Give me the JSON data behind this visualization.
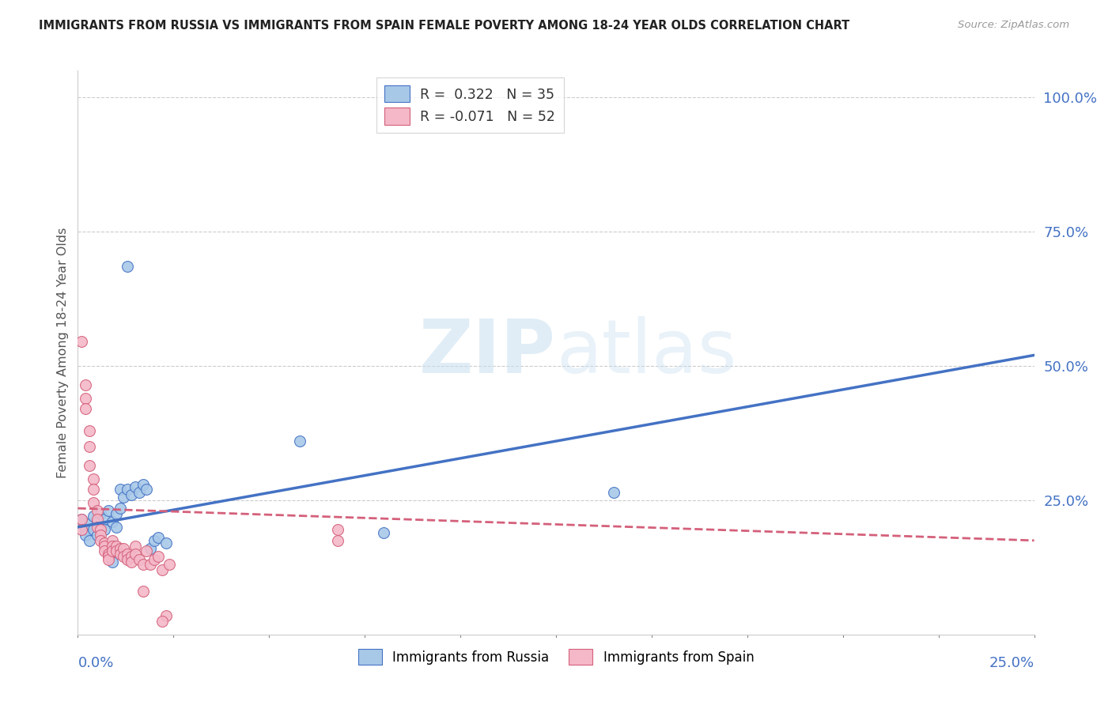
{
  "title": "IMMIGRANTS FROM RUSSIA VS IMMIGRANTS FROM SPAIN FEMALE POVERTY AMONG 18-24 YEAR OLDS CORRELATION CHART",
  "source": "Source: ZipAtlas.com",
  "ylabel": "Female Poverty Among 18-24 Year Olds",
  "yaxis_labels": [
    "100.0%",
    "75.0%",
    "50.0%",
    "25.0%"
  ],
  "yaxis_values": [
    1.0,
    0.75,
    0.5,
    0.25
  ],
  "russia_R": 0.322,
  "russia_N": 35,
  "spain_R": -0.071,
  "spain_N": 52,
  "russia_color": "#a8c8e8",
  "russia_line_color": "#4472c4",
  "spain_color": "#f4b8c8",
  "spain_line_color": "#d4607a",
  "watermark_zip": "ZIP",
  "watermark_atlas": "atlas",
  "xlim": [
    0.0,
    0.25
  ],
  "ylim": [
    0.0,
    1.05
  ],
  "russia_trendline": [
    0.2,
    0.52
  ],
  "spain_trendline": [
    0.235,
    0.175
  ],
  "russia_scatter": [
    [
      0.001,
      0.215
    ],
    [
      0.002,
      0.195
    ],
    [
      0.002,
      0.185
    ],
    [
      0.003,
      0.205
    ],
    [
      0.003,
      0.175
    ],
    [
      0.004,
      0.22
    ],
    [
      0.004,
      0.195
    ],
    [
      0.005,
      0.21
    ],
    [
      0.005,
      0.185
    ],
    [
      0.006,
      0.225
    ],
    [
      0.006,
      0.2
    ],
    [
      0.007,
      0.215
    ],
    [
      0.007,
      0.195
    ],
    [
      0.008,
      0.23
    ],
    [
      0.009,
      0.21
    ],
    [
      0.01,
      0.225
    ],
    [
      0.01,
      0.2
    ],
    [
      0.011,
      0.27
    ],
    [
      0.011,
      0.235
    ],
    [
      0.012,
      0.255
    ],
    [
      0.013,
      0.27
    ],
    [
      0.013,
      0.685
    ],
    [
      0.014,
      0.26
    ],
    [
      0.015,
      0.275
    ],
    [
      0.016,
      0.265
    ],
    [
      0.017,
      0.28
    ],
    [
      0.018,
      0.27
    ],
    [
      0.019,
      0.16
    ],
    [
      0.02,
      0.175
    ],
    [
      0.021,
      0.18
    ],
    [
      0.023,
      0.17
    ],
    [
      0.058,
      0.36
    ],
    [
      0.08,
      0.19
    ],
    [
      0.14,
      0.265
    ],
    [
      0.009,
      0.135
    ]
  ],
  "spain_scatter": [
    [
      0.001,
      0.215
    ],
    [
      0.001,
      0.195
    ],
    [
      0.002,
      0.44
    ],
    [
      0.002,
      0.42
    ],
    [
      0.003,
      0.38
    ],
    [
      0.003,
      0.35
    ],
    [
      0.003,
      0.315
    ],
    [
      0.004,
      0.29
    ],
    [
      0.004,
      0.27
    ],
    [
      0.004,
      0.245
    ],
    [
      0.005,
      0.23
    ],
    [
      0.005,
      0.215
    ],
    [
      0.005,
      0.2
    ],
    [
      0.006,
      0.195
    ],
    [
      0.006,
      0.185
    ],
    [
      0.006,
      0.175
    ],
    [
      0.007,
      0.17
    ],
    [
      0.007,
      0.165
    ],
    [
      0.007,
      0.155
    ],
    [
      0.008,
      0.15
    ],
    [
      0.008,
      0.145
    ],
    [
      0.008,
      0.14
    ],
    [
      0.009,
      0.175
    ],
    [
      0.009,
      0.165
    ],
    [
      0.009,
      0.155
    ],
    [
      0.01,
      0.165
    ],
    [
      0.01,
      0.155
    ],
    [
      0.011,
      0.16
    ],
    [
      0.011,
      0.15
    ],
    [
      0.012,
      0.16
    ],
    [
      0.012,
      0.145
    ],
    [
      0.013,
      0.15
    ],
    [
      0.013,
      0.14
    ],
    [
      0.014,
      0.145
    ],
    [
      0.014,
      0.135
    ],
    [
      0.015,
      0.165
    ],
    [
      0.015,
      0.15
    ],
    [
      0.016,
      0.14
    ],
    [
      0.017,
      0.13
    ],
    [
      0.018,
      0.155
    ],
    [
      0.019,
      0.13
    ],
    [
      0.02,
      0.14
    ],
    [
      0.021,
      0.145
    ],
    [
      0.022,
      0.12
    ],
    [
      0.023,
      0.035
    ],
    [
      0.024,
      0.13
    ],
    [
      0.017,
      0.08
    ],
    [
      0.068,
      0.195
    ],
    [
      0.068,
      0.175
    ],
    [
      0.001,
      0.545
    ],
    [
      0.002,
      0.465
    ],
    [
      0.022,
      0.025
    ]
  ]
}
